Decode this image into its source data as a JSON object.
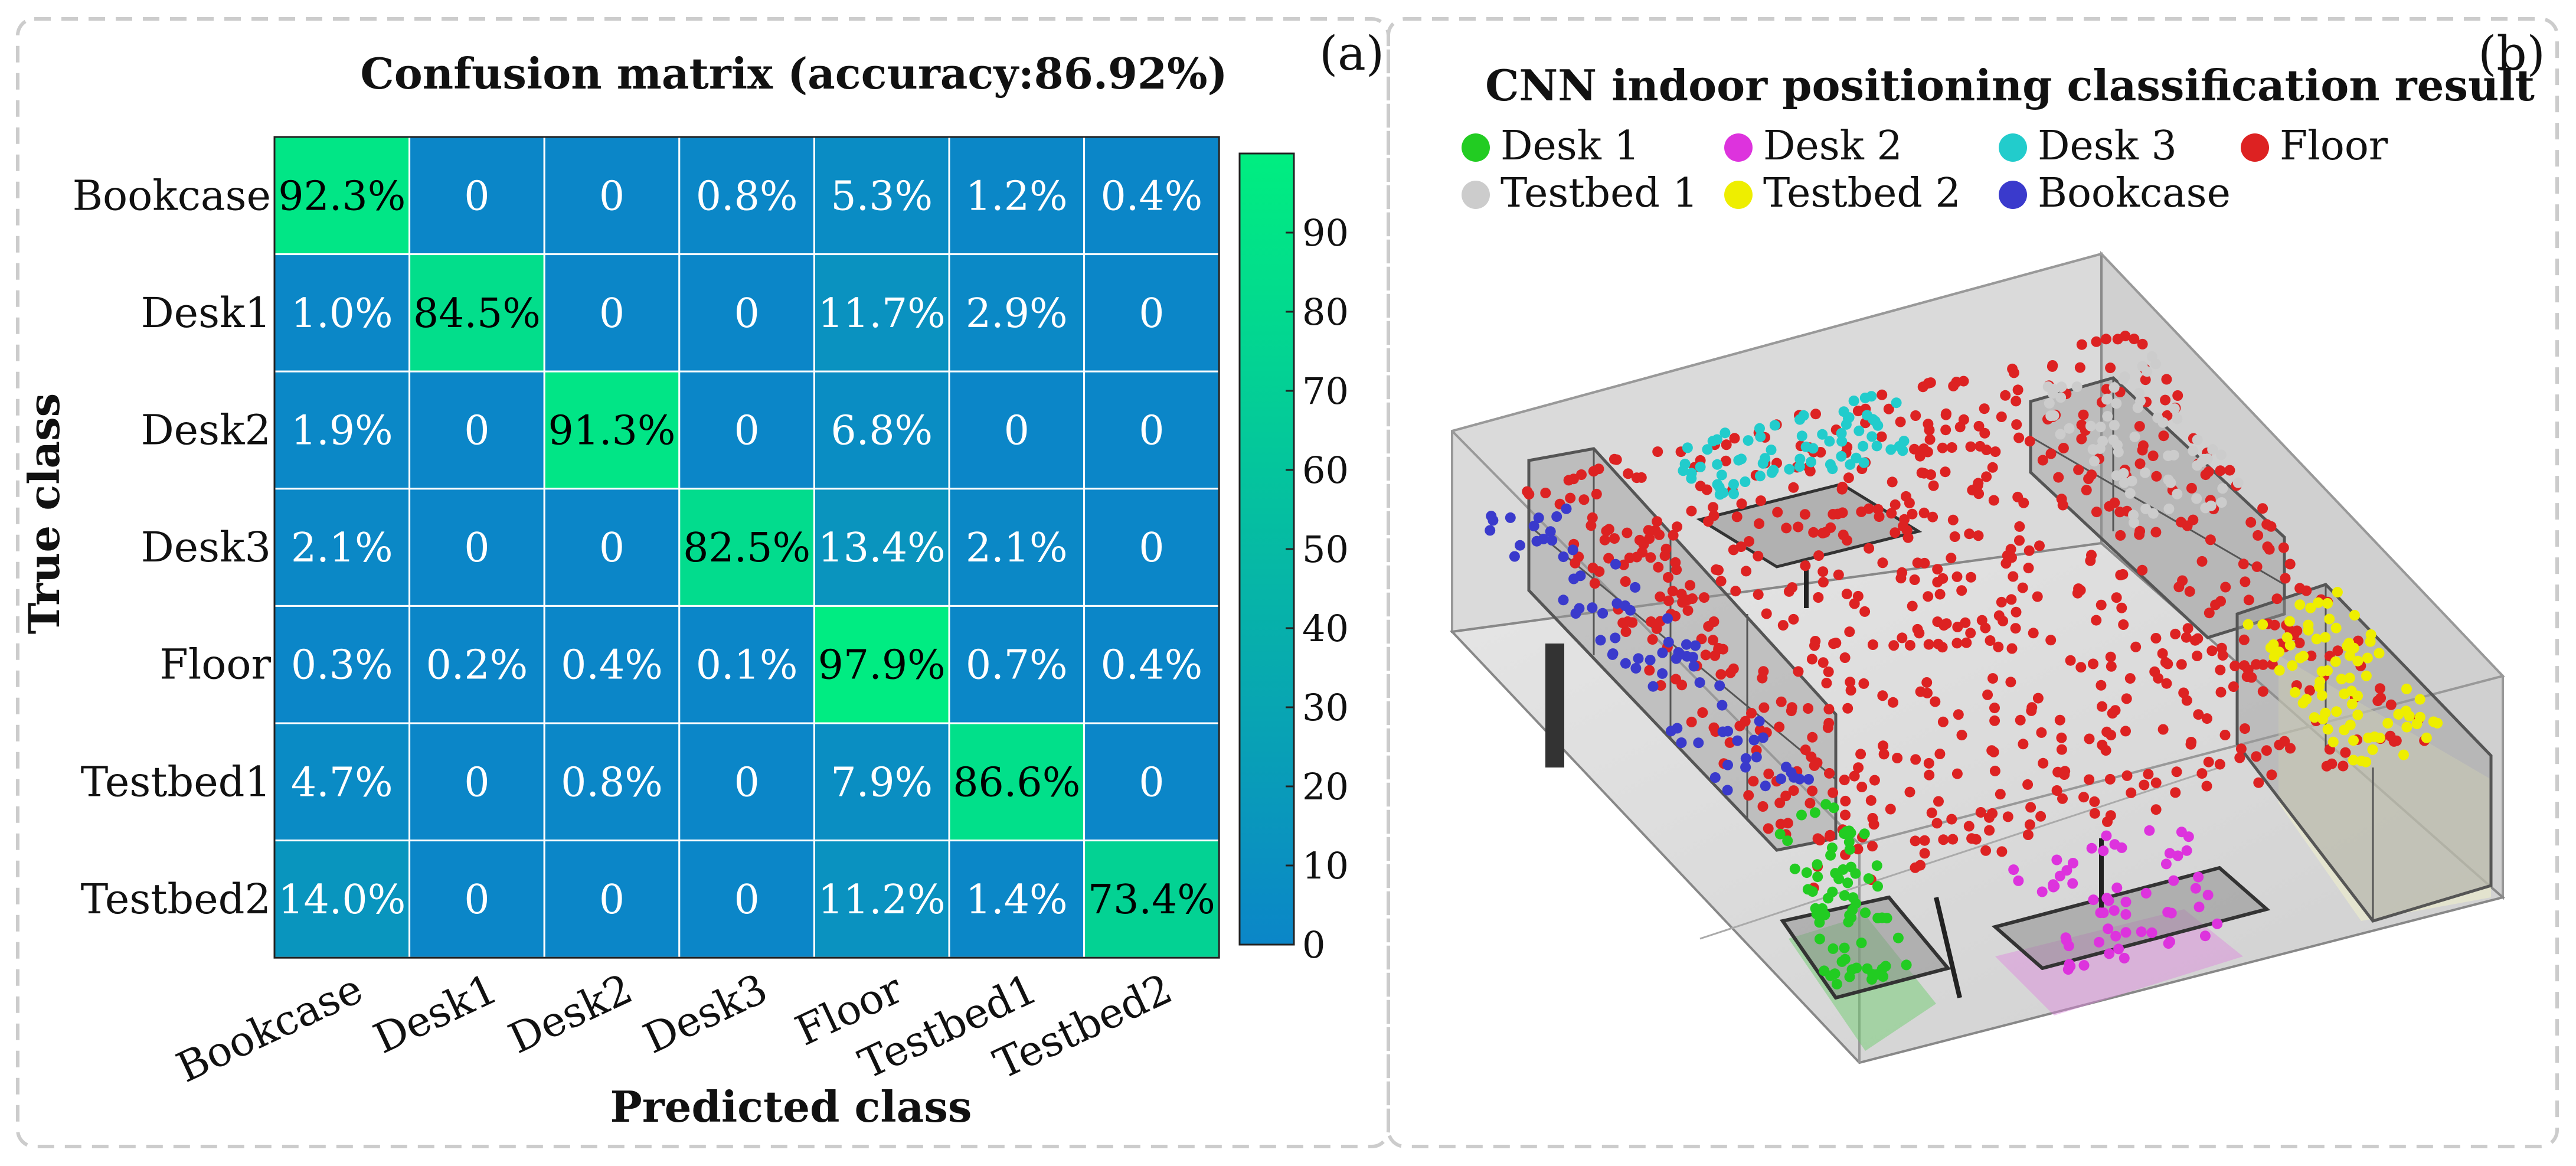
{
  "panel_labels": {
    "a": "(a)",
    "b": "(b)"
  },
  "colors": {
    "low": "#0b86c8",
    "high": "#00ee80",
    "frame": "#cccccc"
  },
  "chart_data": [
    {
      "type": "heatmap",
      "title": "Confusion matrix (accuracy:86.92%)",
      "xlabel": "Predicted class",
      "ylabel": "True class",
      "x_categories": [
        "Bookcase",
        "Desk1",
        "Desk2",
        "Desk3",
        "Floor",
        "Testbed1",
        "Testbed2"
      ],
      "y_categories": [
        "Bookcase",
        "Desk1",
        "Desk2",
        "Desk3",
        "Floor",
        "Testbed1",
        "Testbed2"
      ],
      "values": [
        [
          92.3,
          0,
          0,
          0.8,
          5.3,
          1.2,
          0.4
        ],
        [
          1.0,
          84.5,
          0,
          0,
          11.7,
          2.9,
          0
        ],
        [
          1.9,
          0,
          91.3,
          0,
          6.8,
          0,
          0
        ],
        [
          2.1,
          0,
          0,
          82.5,
          13.4,
          2.1,
          0
        ],
        [
          0.3,
          0.2,
          0.4,
          0.1,
          97.9,
          0.7,
          0.4
        ],
        [
          4.7,
          0,
          0.8,
          0,
          7.9,
          86.6,
          0
        ],
        [
          14.0,
          0,
          0,
          0,
          11.2,
          1.4,
          73.4
        ]
      ],
      "labels": [
        [
          "92.3%",
          "0",
          "0",
          "0.8%",
          "5.3%",
          "1.2%",
          "0.4%"
        ],
        [
          "1.0%",
          "84.5%",
          "0",
          "0",
          "11.7%",
          "2.9%",
          "0"
        ],
        [
          "1.9%",
          "0",
          "91.3%",
          "0",
          "6.8%",
          "0",
          "0"
        ],
        [
          "2.1%",
          "0",
          "0",
          "82.5%",
          "13.4%",
          "2.1%",
          "0"
        ],
        [
          "0.3%",
          "0.2%",
          "0.4%",
          "0.1%",
          "97.9%",
          "0.7%",
          "0.4%"
        ],
        [
          "4.7%",
          "0",
          "0.8%",
          "0",
          "7.9%",
          "86.6%",
          "0"
        ],
        [
          "14.0%",
          "0",
          "0",
          "0",
          "11.2%",
          "1.4%",
          "73.4%"
        ]
      ],
      "colorbar": {
        "range": [
          0,
          100
        ],
        "ticks": [
          "90",
          "80",
          "70",
          "60",
          "50",
          "40",
          "30",
          "20",
          "10",
          "0"
        ]
      }
    },
    {
      "type": "scatter",
      "title": "CNN indoor positioning classification result",
      "legend": [
        {
          "name": "Desk 1",
          "color": "#22cc22"
        },
        {
          "name": "Desk 2",
          "color": "#dd33dd"
        },
        {
          "name": "Desk 3",
          "color": "#22cccc"
        },
        {
          "name": "Floor",
          "color": "#dd2222"
        },
        {
          "name": "Testbed 1",
          "color": "#cccccc"
        },
        {
          "name": "Testbed 2",
          "color": "#eeee00"
        },
        {
          "name": "Bookcase",
          "color": "#3a3acc"
        }
      ]
    }
  ]
}
